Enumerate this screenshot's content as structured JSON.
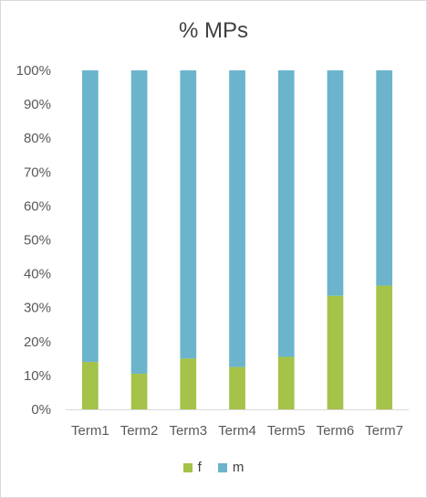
{
  "chart_data": {
    "type": "bar",
    "stacked": true,
    "percent": true,
    "title": "% MPs",
    "xlabel": "",
    "ylabel": "",
    "categories": [
      "Term1",
      "Term2",
      "Term3",
      "Term4",
      "Term5",
      "Term6",
      "Term7"
    ],
    "series": [
      {
        "name": "f",
        "color": "#a5c249",
        "values": [
          14,
          10.5,
          15,
          12.5,
          15.5,
          33.5,
          36.5
        ]
      },
      {
        "name": "m",
        "color": "#6bb4cc",
        "values": [
          86,
          89.5,
          85,
          87.5,
          84.5,
          66.5,
          63.5
        ]
      }
    ],
    "ylim": [
      0,
      100
    ],
    "yticks": [
      "0%",
      "10%",
      "20%",
      "30%",
      "40%",
      "50%",
      "60%",
      "70%",
      "80%",
      "90%",
      "100%"
    ],
    "legend_position": "bottom",
    "grid": false
  }
}
